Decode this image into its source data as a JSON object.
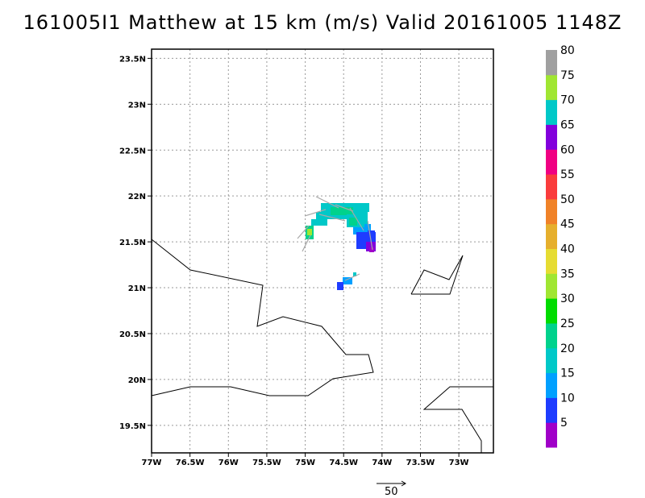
{
  "title": "161005I1 Matthew at 15 km (m/s) Valid 20161005 1148Z",
  "map": {
    "lon_range": [
      -77,
      -72.55
    ],
    "lat_range": [
      19.2,
      23.6
    ],
    "lon_ticks": [
      "77W",
      "76.5W",
      "76W",
      "75.5W",
      "75W",
      "74.5W",
      "74W",
      "73.5W",
      "73W"
    ],
    "lat_ticks": [
      "19.5N",
      "20N",
      "20.5N",
      "21N",
      "21.5N",
      "22N",
      "22.5N",
      "23N",
      "23.5N"
    ],
    "grid": "dotted",
    "vector_reference": {
      "label": "50",
      "speed": 50
    }
  },
  "colorbar": {
    "labels": [
      "5",
      "10",
      "15",
      "20",
      "25",
      "30",
      "35",
      "40",
      "45",
      "50",
      "55",
      "60",
      "65",
      "70",
      "75",
      "80"
    ],
    "colors": [
      "#a000c8",
      "#1e3cff",
      "#00a0ff",
      "#00c8c8",
      "#00d28c",
      "#00dc00",
      "#a0e632",
      "#e6dc32",
      "#e6af2d",
      "#f08228",
      "#fa3c3c",
      "#f00082",
      "#8200dc",
      "#00c8c8",
      "#a0e632",
      "#a0a0a0"
    ]
  },
  "chart_data": {
    "type": "heatmap",
    "title": "161005I1 Matthew at 15 km (m/s) Valid 20161005 1148Z",
    "xlabel": "",
    "ylabel": "",
    "xlim": [
      -77,
      -72.55
    ],
    "ylim": [
      19.2,
      23.6
    ],
    "legend": "colorbar right",
    "units": "m/s",
    "grid": true
  }
}
